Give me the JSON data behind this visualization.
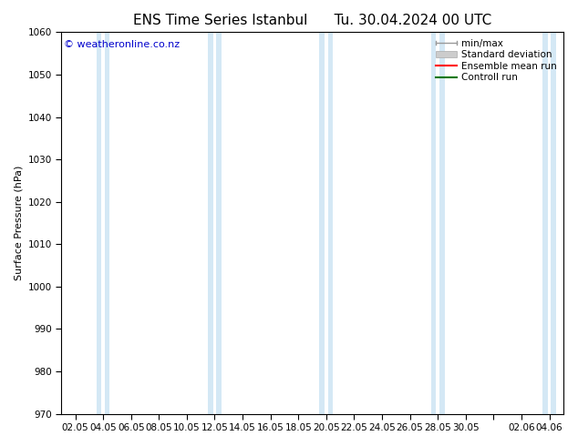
{
  "title_left": "ENS Time Series Istanbul",
  "title_right": "Tu. 30.04.2024 00 UTC",
  "ylabel": "Surface Pressure (hPa)",
  "ylim": [
    970,
    1060
  ],
  "yticks": [
    970,
    980,
    990,
    1000,
    1010,
    1020,
    1030,
    1040,
    1050,
    1060
  ],
  "xtick_labels": [
    "02.05",
    "04.05",
    "06.05",
    "08.05",
    "10.05",
    "12.05",
    "14.05",
    "16.05",
    "18.05",
    "20.05",
    "22.05",
    "24.05",
    "26.05",
    "28.05",
    "30.05",
    "",
    "02.06",
    "04.06"
  ],
  "band_color": "#d4e8f5",
  "band_alpha": 1.0,
  "bg_color": "#ffffff",
  "plot_bg_color": "#ffffff",
  "copyright_text": "© weatheronline.co.nz",
  "copyright_color": "#0000cc",
  "figsize": [
    6.34,
    4.9
  ],
  "dpi": 100,
  "legend_fontsize": 7.5,
  "title_fontsize": 11,
  "ylabel_fontsize": 8,
  "tick_fontsize": 7.5
}
